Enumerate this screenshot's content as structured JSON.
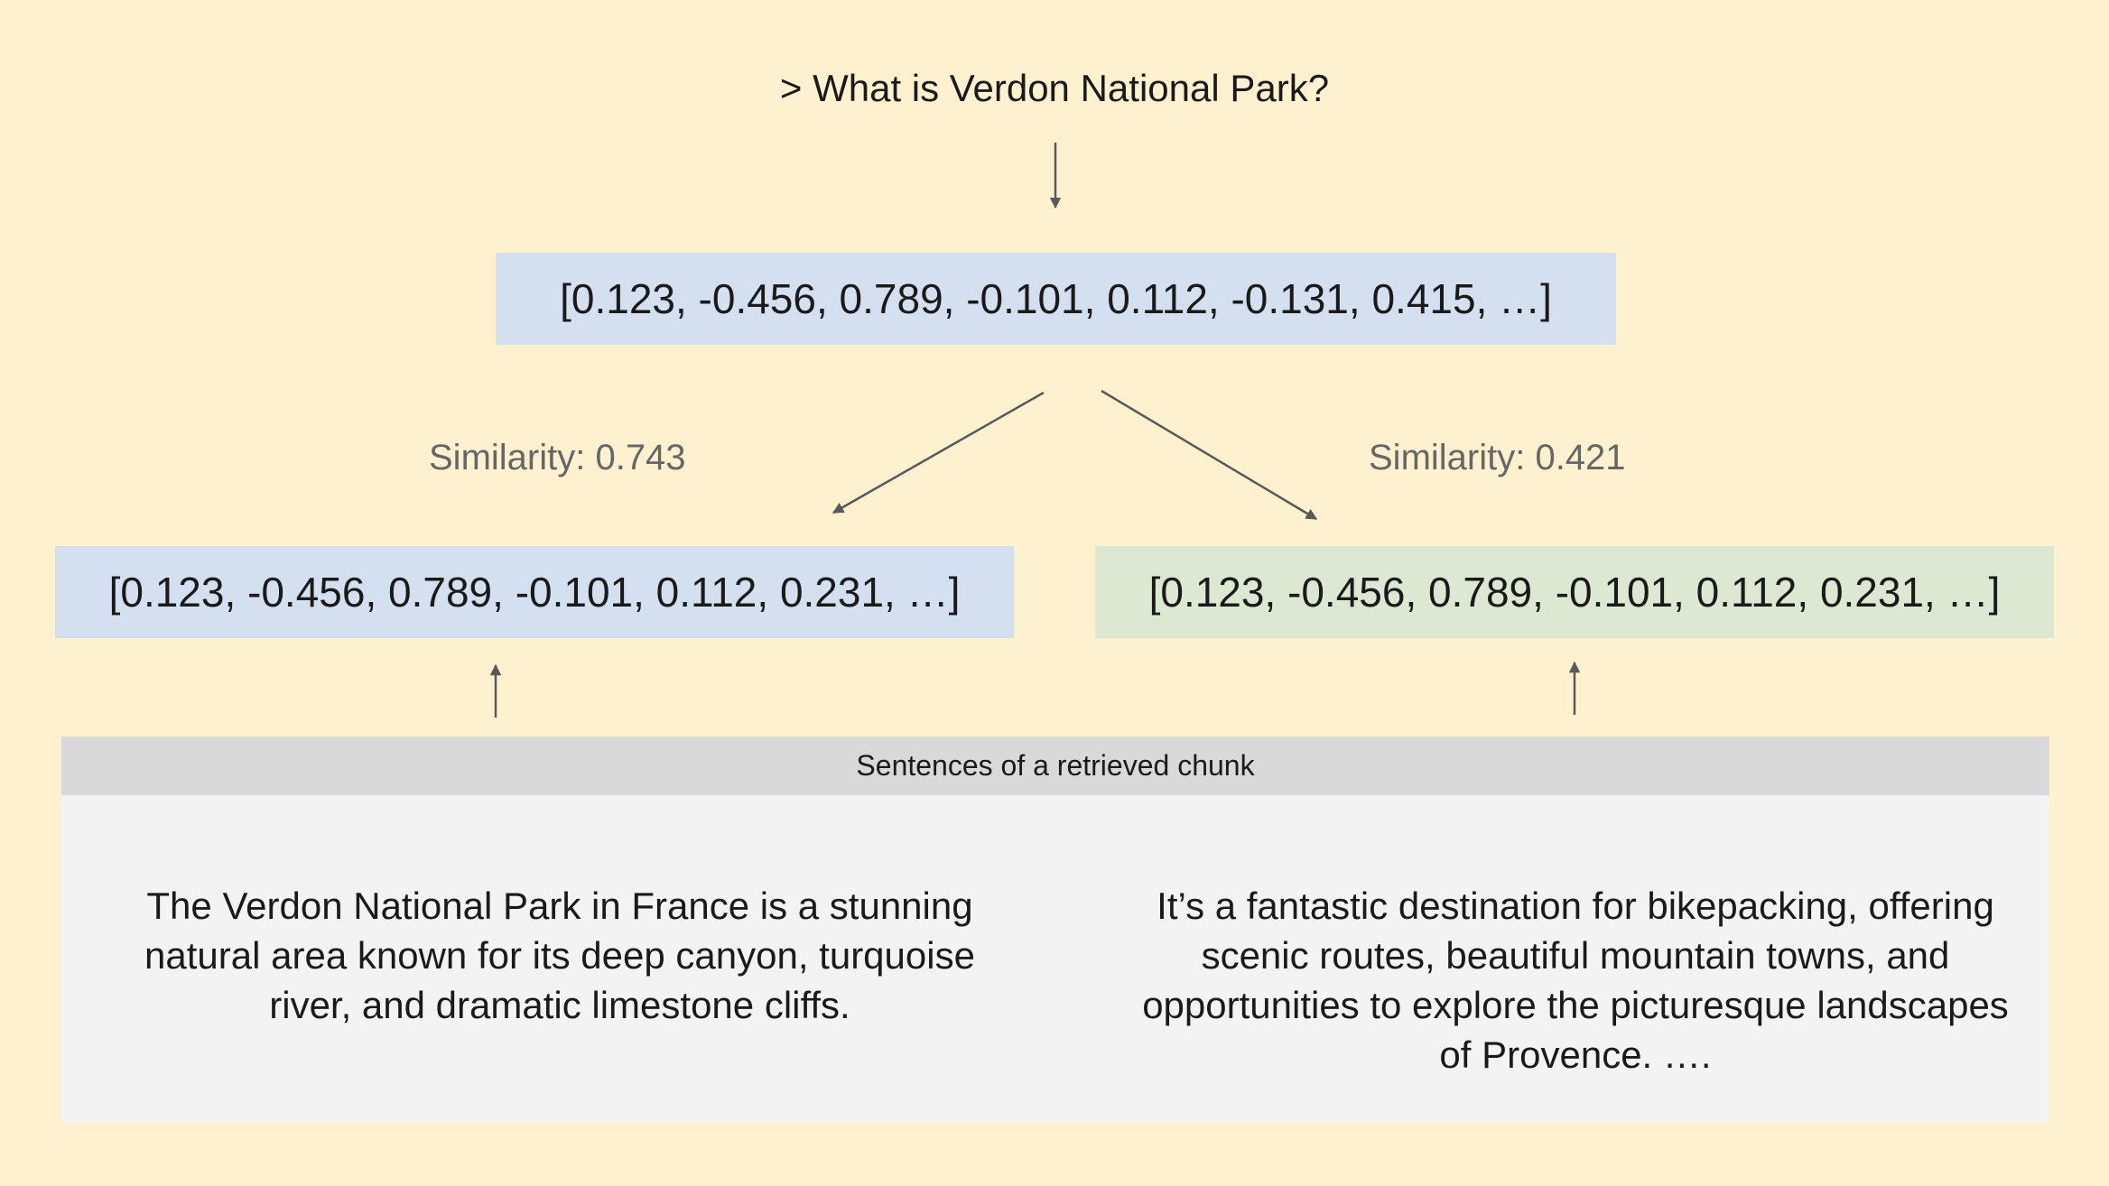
{
  "query": {
    "text": "> What is Verdon National Park?"
  },
  "query_embedding": {
    "text": "[0.123, -0.456, 0.789, -0.101, 0.112, -0.131, 0.415, …]"
  },
  "similarity_left": {
    "text": "Similarity: 0.743"
  },
  "similarity_right": {
    "text": "Similarity: 0.421"
  },
  "embedding_left": {
    "text": "[0.123, -0.456, 0.789, -0.101, 0.112, 0.231, …]"
  },
  "embedding_right": {
    "text": "[0.123, -0.456, 0.789, -0.101, 0.112, 0.231, …]"
  },
  "chunk": {
    "header": "Sentences of a retrieved chunk",
    "sentence_left": "The Verdon National Park in France is a stunning natural area known for its deep canyon, turquoise river, and dramatic limestone cliffs.",
    "sentence_right": "It’s a fantastic destination for bikepacking, offering scenic routes, beautiful mountain towns, and opportunities to explore the picturesque landscapes of Provence. …."
  },
  "colors": {
    "background": "#fdf1cf",
    "query_box": "#d4e0f0",
    "left_box": "#d4e0f0",
    "right_box": "#dde8d3",
    "chunk_panel": "#f3f3f3",
    "chunk_header": "#d9d9d9",
    "arrow": "#595959"
  }
}
